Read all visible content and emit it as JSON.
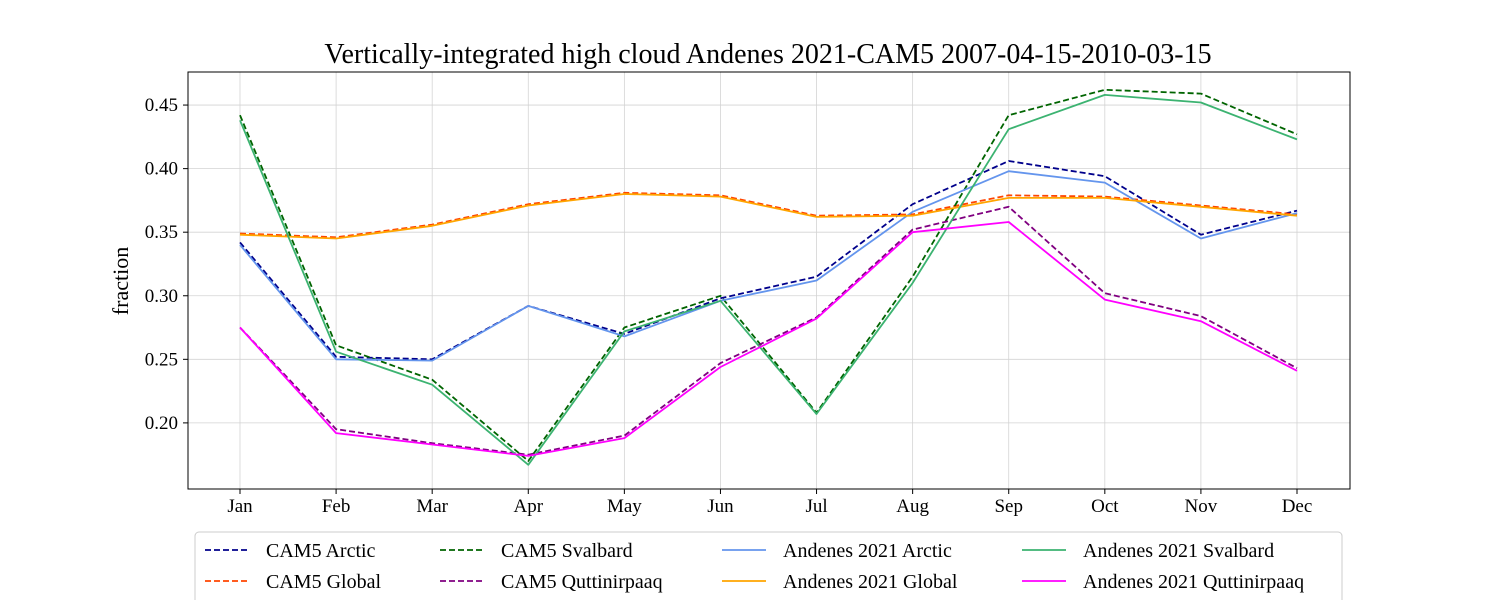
{
  "chart_data": {
    "type": "line",
    "title": "Vertically-integrated high cloud Andenes 2021-CAM5 2007-04-15-2010-03-15",
    "xlabel": "",
    "ylabel": "fraction",
    "categories": [
      "Jan",
      "Feb",
      "Mar",
      "Apr",
      "May",
      "Jun",
      "Jul",
      "Aug",
      "Sep",
      "Oct",
      "Nov",
      "Dec"
    ],
    "ylim": [
      0.148,
      0.476
    ],
    "yticks": [
      0.2,
      0.25,
      0.3,
      0.35,
      0.4,
      0.45
    ],
    "ytick_labels": [
      "0.20",
      "0.25",
      "0.30",
      "0.35",
      "0.40",
      "0.45"
    ],
    "grid": true,
    "legend_position": "bottom",
    "series": [
      {
        "name": "CAM5 Arctic",
        "color": "#00008b",
        "style": "dashed",
        "values": [
          0.342,
          0.252,
          0.25,
          0.292,
          0.27,
          0.298,
          0.315,
          0.372,
          0.406,
          0.394,
          0.348,
          0.367
        ]
      },
      {
        "name": "CAM5 Global",
        "color": "#ff4500",
        "style": "dashed",
        "values": [
          0.349,
          0.346,
          0.356,
          0.372,
          0.381,
          0.379,
          0.363,
          0.364,
          0.379,
          0.378,
          0.371,
          0.364
        ]
      },
      {
        "name": "CAM5 Svalbard",
        "color": "#006400",
        "style": "dashed",
        "values": [
          0.442,
          0.261,
          0.234,
          0.17,
          0.275,
          0.3,
          0.208,
          0.315,
          0.442,
          0.462,
          0.459,
          0.427
        ]
      },
      {
        "name": "CAM5 Quttinirpaaq",
        "color": "#800080",
        "style": "dashed",
        "values": [
          0.275,
          0.195,
          0.184,
          0.175,
          0.19,
          0.247,
          0.283,
          0.352,
          0.37,
          0.302,
          0.284,
          0.243
        ]
      },
      {
        "name": "Andenes 2021 Arctic",
        "color": "#6495ed",
        "style": "solid",
        "values": [
          0.34,
          0.25,
          0.249,
          0.292,
          0.268,
          0.296,
          0.312,
          0.366,
          0.398,
          0.389,
          0.345,
          0.365
        ]
      },
      {
        "name": "Andenes 2021 Global",
        "color": "#ffa500",
        "style": "solid",
        "values": [
          0.348,
          0.345,
          0.355,
          0.371,
          0.38,
          0.378,
          0.362,
          0.363,
          0.377,
          0.377,
          0.37,
          0.363
        ]
      },
      {
        "name": "Andenes 2021 Svalbard",
        "color": "#3cb371",
        "style": "solid",
        "values": [
          0.438,
          0.256,
          0.23,
          0.167,
          0.272,
          0.296,
          0.207,
          0.31,
          0.431,
          0.458,
          0.452,
          0.423
        ]
      },
      {
        "name": "Andenes 2021 Quttinirpaaq",
        "color": "#ff00ff",
        "style": "solid",
        "values": [
          0.275,
          0.192,
          0.183,
          0.174,
          0.188,
          0.244,
          0.282,
          0.35,
          0.358,
          0.297,
          0.28,
          0.241
        ]
      }
    ]
  }
}
